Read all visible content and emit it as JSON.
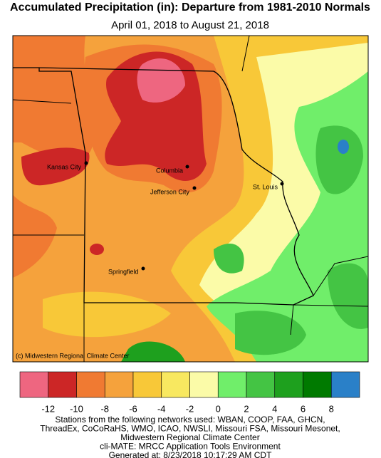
{
  "header": {
    "title": "Accumulated Precipitation (in): Departure from 1981-2010 Normals",
    "subtitle": "April 01, 2018 to August 21, 2018"
  },
  "map": {
    "cities": [
      {
        "label": "Kansas City"
      },
      {
        "label": "Columbia"
      },
      {
        "label": "Jefferson City"
      },
      {
        "label": "St. Louis"
      },
      {
        "label": "Springfield"
      }
    ],
    "credit": "(c) Midwestern Regional Climate Center"
  },
  "legend": {
    "colors": [
      "#ee6680",
      "#cc2626",
      "#f07a32",
      "#f5a23c",
      "#f8c838",
      "#f8e860",
      "#fbfba8",
      "#70ee6a",
      "#44c444",
      "#1ea01e",
      "#007a00",
      "#2a80c8"
    ],
    "ticks": [
      -12,
      -10,
      -8,
      -6,
      -4,
      -2,
      0,
      2,
      4,
      6,
      8
    ]
  },
  "footer": {
    "lines": [
      "Stations from the following networks used: WBAN, COOP, FAA, GHCN,",
      "ThreadEx, CoCoRaHS, WMO, ICAO, NWSLI, Missouri FSA, Missouri Mesonet,",
      "Midwestern Regional Climate Center",
      "cli-MATE: MRCC Application Tools Environment",
      "Generated at: 8/23/2018 10:17:29 AM CDT"
    ]
  }
}
